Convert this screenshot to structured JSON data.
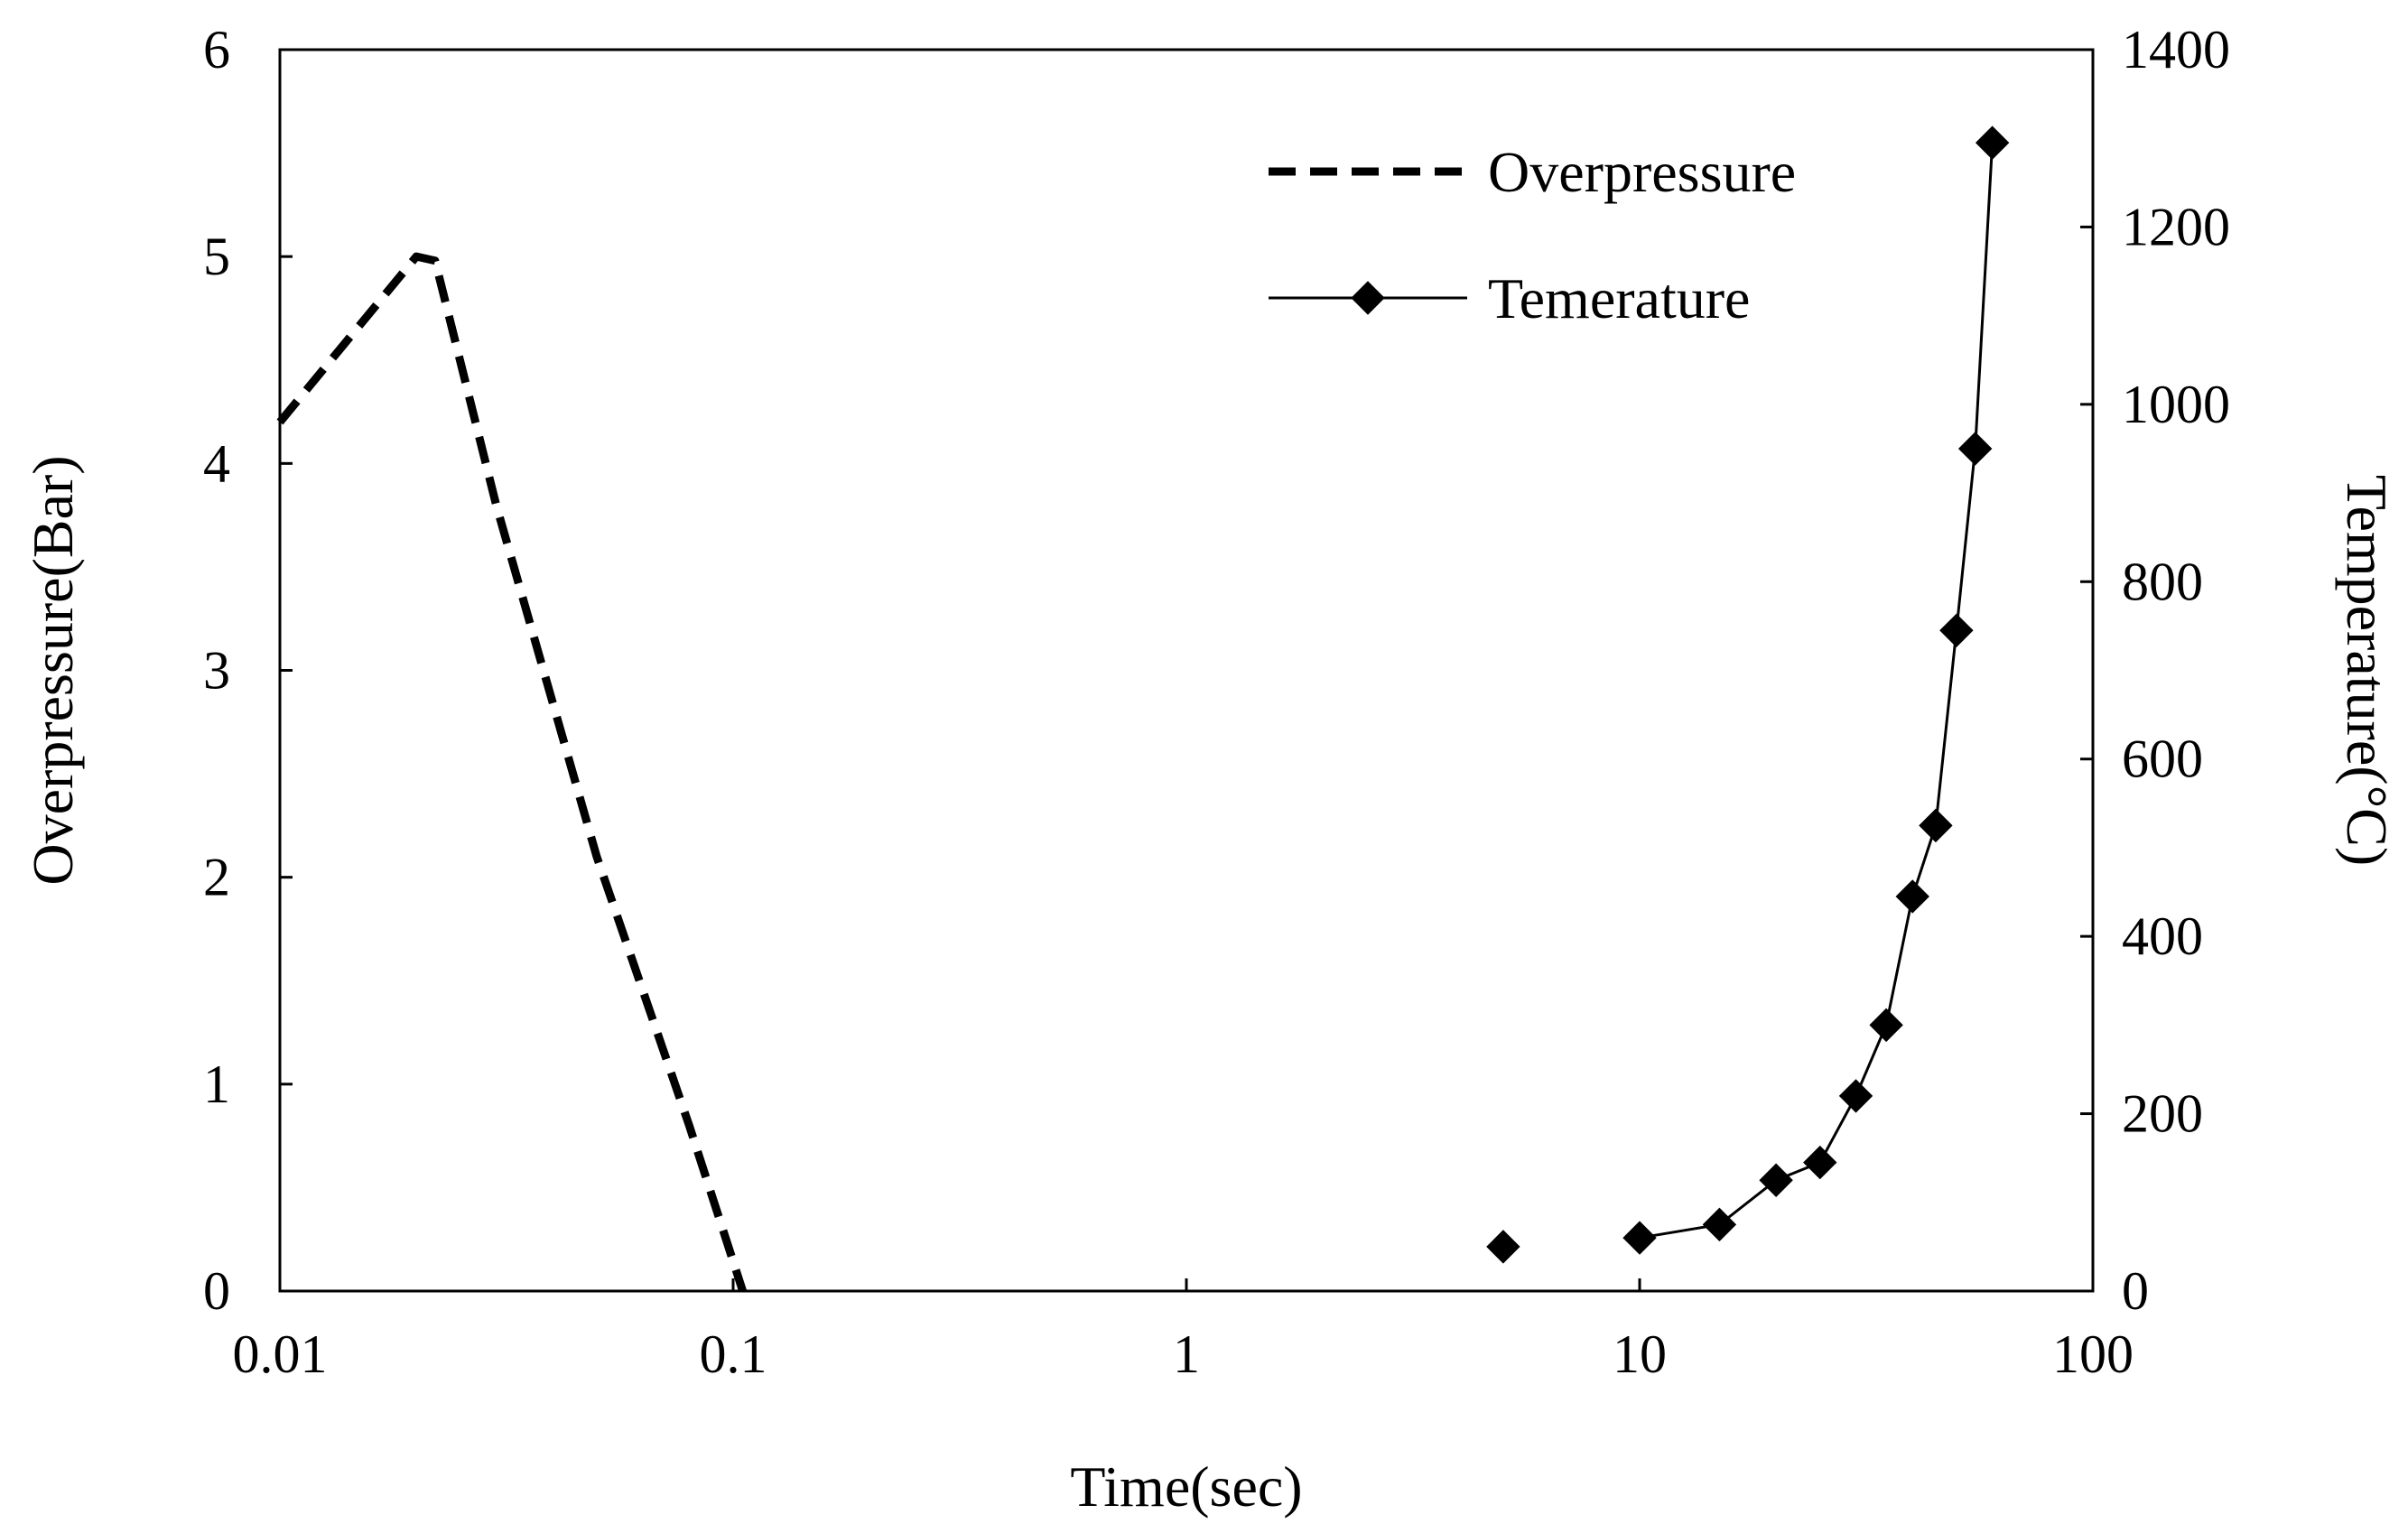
{
  "chart_data": {
    "type": "line",
    "title": "",
    "x_scale": "log",
    "xlim": [
      0.01,
      100
    ],
    "x_ticks": [
      0.01,
      0.1,
      1,
      10,
      100
    ],
    "x_tick_labels": [
      "0.01",
      "0.1",
      "1",
      "10",
      "100"
    ],
    "xlabel": "Time(sec)",
    "y_left": {
      "label": "Overpressure(Bar)",
      "lim": [
        0,
        6
      ],
      "ticks": [
        0,
        1,
        2,
        3,
        4,
        5,
        6
      ],
      "tick_labels": [
        "0",
        "1",
        "2",
        "3",
        "4",
        "5",
        "6"
      ]
    },
    "y_right": {
      "label": "Temperature(°C)",
      "lim": [
        0,
        1400
      ],
      "ticks": [
        0,
        200,
        400,
        600,
        800,
        1000,
        1200,
        1400
      ],
      "tick_labels": [
        "0",
        "200",
        "400",
        "600",
        "800",
        "1000",
        "1200",
        "1400"
      ]
    },
    "series": [
      {
        "name": "Overpressure",
        "axis": "left",
        "style": "dashed",
        "x": [
          0.01,
          0.02,
          0.022,
          0.03,
          0.05,
          0.08,
          0.105
        ],
        "y": [
          4.2,
          5.0,
          4.98,
          3.8,
          2.1,
          0.8,
          0.0
        ]
      },
      {
        "name": "Temerature",
        "axis": "right",
        "style": "solid-diamond",
        "x": [
          5,
          10,
          15,
          20,
          25,
          30,
          35,
          40,
          45,
          50,
          55,
          60
        ],
        "y": [
          50,
          60,
          75,
          125,
          145,
          220,
          300,
          445,
          525,
          745,
          950,
          1295
        ]
      }
    ],
    "legend_position": "top-right",
    "grid": false
  },
  "colors": {
    "line": "#000000",
    "background": "#ffffff"
  }
}
